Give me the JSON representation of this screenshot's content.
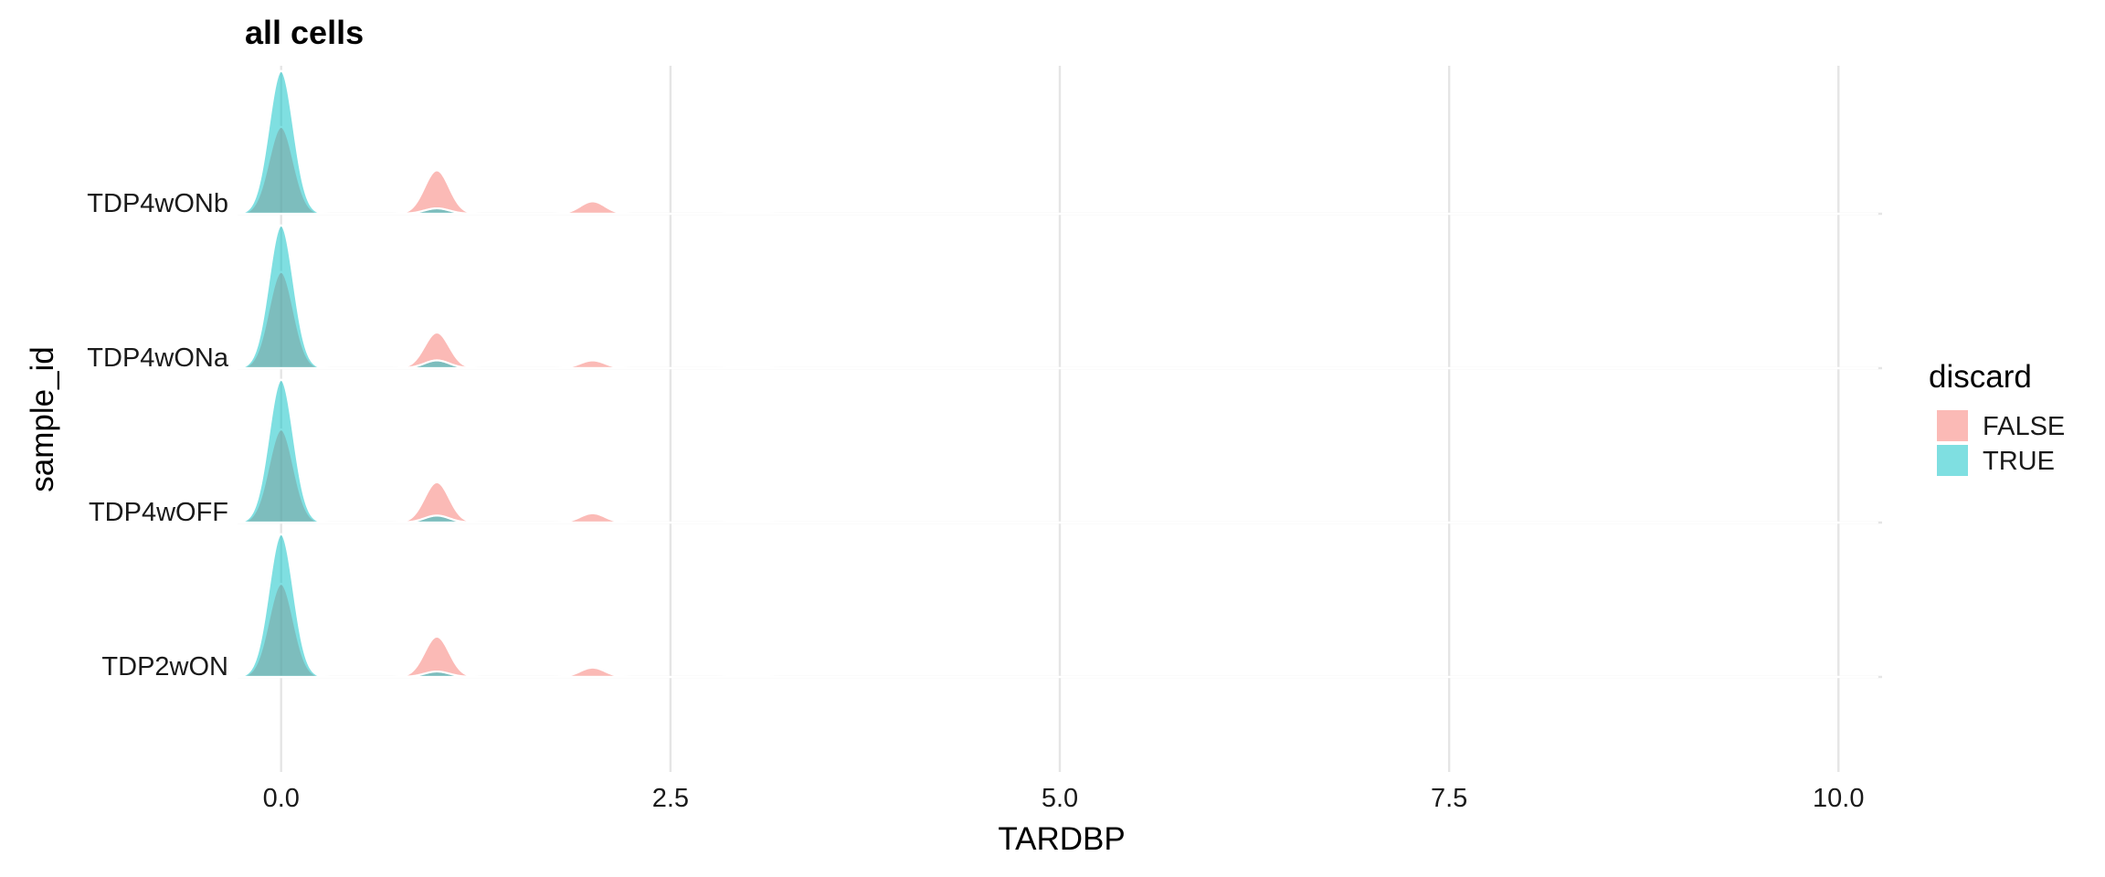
{
  "chart_data": {
    "type": "area",
    "subtype": "ridgeline-density",
    "title": "all cells",
    "xlabel": "TARDBP",
    "ylabel": "sample_id",
    "xlim": [
      -0.28,
      10.28
    ],
    "x_ticks": [
      0.0,
      2.5,
      5.0,
      7.5,
      10.0
    ],
    "x_tick_labels": [
      "0.0",
      "2.5",
      "5.0",
      "7.5",
      "10.0"
    ],
    "categories": [
      "TDP4wONb",
      "TDP4wONa",
      "TDP4wOFF",
      "TDP2wON"
    ],
    "grid": true,
    "legend": {
      "title": "discard",
      "position": "right",
      "entries": [
        {
          "label": "FALSE",
          "color": "#F8766D"
        },
        {
          "label": "TRUE",
          "color": "#00BFC4"
        }
      ]
    },
    "series": [
      {
        "name": "FALSE",
        "color": "#F8766D",
        "opacity": 0.5,
        "bandwidth": 0.08,
        "peaks_by_category": {
          "TDP4wONb": [
            {
              "x": 0,
              "height": 0.56
            },
            {
              "x": 1,
              "height": 0.28
            },
            {
              "x": 2,
              "height": 0.08
            },
            {
              "x": 3,
              "height": 0.01
            }
          ],
          "TDP4wONa": [
            {
              "x": 0,
              "height": 0.62
            },
            {
              "x": 1,
              "height": 0.23
            },
            {
              "x": 2,
              "height": 0.05
            },
            {
              "x": 3,
              "height": 0.01
            }
          ],
          "TDP4wOFF": [
            {
              "x": 0,
              "height": 0.6
            },
            {
              "x": 1,
              "height": 0.26
            },
            {
              "x": 2,
              "height": 0.06
            },
            {
              "x": 3,
              "height": 0.01
            }
          ],
          "TDP2wON": [
            {
              "x": 0,
              "height": 0.6
            },
            {
              "x": 1,
              "height": 0.26
            },
            {
              "x": 2,
              "height": 0.06
            },
            {
              "x": 3,
              "height": 0.01
            }
          ]
        }
      },
      {
        "name": "TRUE",
        "color": "#00BFC4",
        "opacity": 0.5,
        "bandwidth": 0.08,
        "peaks_by_category": {
          "TDP4wONb": [
            {
              "x": 0,
              "height": 0.92
            },
            {
              "x": 1,
              "height": 0.035
            }
          ],
          "TDP4wONa": [
            {
              "x": 0,
              "height": 0.92
            },
            {
              "x": 1,
              "height": 0.05
            }
          ],
          "TDP4wOFF": [
            {
              "x": 0,
              "height": 0.92
            },
            {
              "x": 1,
              "height": 0.045
            }
          ],
          "TDP2wON": [
            {
              "x": 0,
              "height": 0.92
            },
            {
              "x": 1,
              "height": 0.035
            }
          ]
        }
      }
    ]
  }
}
